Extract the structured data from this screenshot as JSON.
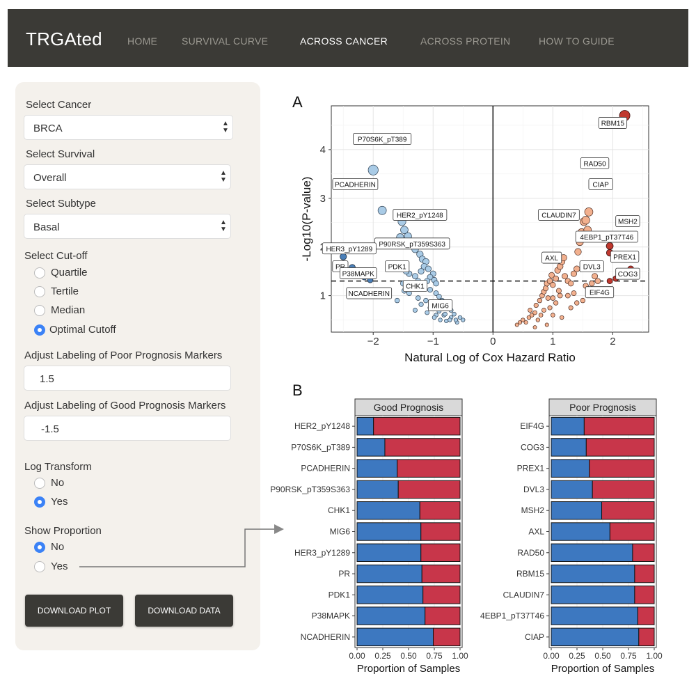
{
  "app": {
    "brand": "TRGAted",
    "nav": [
      "HOME",
      "SURVIVAL CURVE",
      "ACROSS CANCER",
      "ACROSS PROTEIN",
      "HOW TO GUIDE"
    ],
    "active_nav": "ACROSS CANCER"
  },
  "sidebar": {
    "cancer_label": "Select Cancer",
    "cancer_value": "BRCA",
    "survival_label": "Select Survival",
    "survival_value": "Overall",
    "subtype_label": "Select Subtype",
    "subtype_value": "Basal",
    "cutoff_label": "Select Cut-off",
    "cutoff_options": [
      "Quartile",
      "Tertile",
      "Median",
      "Optimal Cutoff"
    ],
    "cutoff_selected": "Optimal Cutoff",
    "poor_label": "Adjust Labeling of Poor Prognosis Markers",
    "poor_value": "1.5",
    "good_label": "Adjust Labeling of Good Prognosis Markers",
    "good_value": "-1.5",
    "log_label": "Log Transform",
    "log_options": [
      "No",
      "Yes"
    ],
    "log_selected": "Yes",
    "prop_label": "Show Proportion",
    "prop_options": [
      "No",
      "Yes"
    ],
    "prop_selected": "No",
    "download_plot": "DOWNLOAD PLOT",
    "download_data": "DOWNLOAD DATA"
  },
  "colors": {
    "navbar": "#3b3a36",
    "panel": "#f4f1ec",
    "radio_selected": "#3b82f6",
    "good_dark": "#4a7fb8",
    "good_light": "#a9cbe6",
    "poor_dark": "#c0392f",
    "poor_light": "#f2b08e",
    "bar_blue": "#3d78c0",
    "bar_red": "#c8364a"
  },
  "panel_a": {
    "tag": "A",
    "chart_data": {
      "type": "scatter",
      "xlabel": "Natural Log of Cox Hazard Ratio",
      "ylabel": "-Log10(P-value)",
      "xlim": [
        -2.7,
        2.6
      ],
      "ylim": [
        0.25,
        4.9
      ],
      "xticks": [
        -2,
        -1,
        0,
        1,
        2
      ],
      "yticks": [
        1,
        2,
        3,
        4
      ],
      "threshold_y": 1.3,
      "grid": true,
      "points_good": [
        [
          -2.0,
          3.58
        ],
        [
          -1.85,
          2.75
        ],
        [
          -1.52,
          2.52
        ],
        [
          -1.48,
          2.35
        ],
        [
          -1.42,
          2.22
        ],
        [
          -1.55,
          2.2
        ],
        [
          -1.35,
          2.05
        ],
        [
          -1.3,
          1.95
        ],
        [
          -1.22,
          1.85
        ],
        [
          -1.18,
          1.75
        ],
        [
          -1.12,
          1.7
        ],
        [
          -1.15,
          1.6
        ],
        [
          -1.08,
          1.55
        ],
        [
          -1.2,
          1.5
        ],
        [
          -1.0,
          1.45
        ],
        [
          -1.05,
          1.38
        ],
        [
          -0.98,
          1.32
        ],
        [
          -1.1,
          1.3
        ],
        [
          -0.95,
          1.25
        ],
        [
          -1.3,
          1.4
        ],
        [
          -1.4,
          1.45
        ],
        [
          -1.25,
          1.3
        ],
        [
          -1.15,
          1.2
        ],
        [
          -1.05,
          1.12
        ],
        [
          -0.95,
          1.05
        ],
        [
          -0.9,
          0.98
        ],
        [
          -0.85,
          0.9
        ],
        [
          -0.8,
          0.85
        ],
        [
          -0.75,
          0.75
        ],
        [
          -0.7,
          0.7
        ],
        [
          -0.65,
          0.62
        ],
        [
          -0.55,
          0.55
        ],
        [
          -0.5,
          0.5
        ],
        [
          -0.6,
          0.45
        ],
        [
          -0.7,
          0.55
        ],
        [
          -0.82,
          0.6
        ],
        [
          -0.9,
          0.68
        ],
        [
          -1.0,
          0.8
        ],
        [
          -1.12,
          0.9
        ],
        [
          -1.25,
          0.95
        ],
        [
          -1.4,
          1.05
        ],
        [
          -1.6,
          0.9
        ],
        [
          -1.3,
          0.7
        ],
        [
          -1.1,
          0.65
        ],
        [
          -0.95,
          0.6
        ],
        [
          -0.88,
          0.5
        ],
        [
          -0.78,
          0.48
        ],
        [
          -0.72,
          0.5
        ],
        [
          -1.05,
          0.75
        ],
        [
          -1.2,
          0.82
        ],
        [
          -0.92,
          0.78
        ],
        [
          -1.35,
          1.15
        ],
        [
          -1.5,
          1.25
        ],
        [
          -1.45,
          1.5
        ],
        [
          -1.48,
          1.1
        ],
        [
          -0.62,
          0.5
        ],
        [
          -0.98,
          0.55
        ],
        [
          -0.8,
          0.62
        ]
      ],
      "points_good_dark": [
        [
          -2.5,
          1.8
        ],
        [
          -2.35,
          1.58
        ],
        [
          -2.25,
          1.5
        ],
        [
          -2.15,
          1.38
        ],
        [
          -2.05,
          1.32
        ]
      ],
      "points_poor": [
        [
          0.4,
          0.4
        ],
        [
          0.45,
          0.45
        ],
        [
          0.5,
          0.5
        ],
        [
          0.55,
          0.45
        ],
        [
          0.6,
          0.55
        ],
        [
          0.65,
          0.6
        ],
        [
          0.62,
          0.7
        ],
        [
          0.7,
          0.65
        ],
        [
          0.72,
          0.8
        ],
        [
          0.75,
          0.5
        ],
        [
          0.78,
          0.9
        ],
        [
          0.82,
          1.0
        ],
        [
          0.85,
          1.08
        ],
        [
          0.88,
          1.15
        ],
        [
          0.9,
          1.25
        ],
        [
          0.92,
          0.95
        ],
        [
          0.95,
          1.3
        ],
        [
          0.98,
          1.42
        ],
        [
          1.0,
          1.22
        ],
        [
          1.05,
          1.35
        ],
        [
          1.08,
          1.52
        ],
        [
          1.1,
          1.1
        ],
        [
          1.12,
          1.6
        ],
        [
          1.15,
          1.7
        ],
        [
          1.18,
          1.78
        ],
        [
          1.05,
          0.85
        ],
        [
          0.95,
          0.75
        ],
        [
          0.85,
          0.7
        ],
        [
          0.8,
          0.6
        ],
        [
          1.0,
          0.95
        ],
        [
          1.12,
          1.0
        ],
        [
          1.2,
          1.4
        ],
        [
          1.25,
          1.3
        ],
        [
          1.3,
          1.25
        ],
        [
          1.35,
          1.45
        ],
        [
          1.4,
          1.55
        ],
        [
          1.42,
          1.9
        ],
        [
          1.45,
          2.1
        ],
        [
          1.48,
          2.3
        ],
        [
          1.5,
          2.25
        ],
        [
          1.52,
          2.52
        ],
        [
          1.55,
          2.55
        ],
        [
          1.58,
          2.35
        ],
        [
          1.6,
          2.2
        ],
        [
          1.6,
          2.72
        ],
        [
          1.15,
          0.55
        ],
        [
          1.3,
          0.75
        ],
        [
          1.4,
          0.85
        ],
        [
          1.5,
          0.9
        ],
        [
          1.55,
          1.2
        ],
        [
          1.62,
          1.05
        ],
        [
          1.65,
          1.25
        ],
        [
          1.7,
          1.4
        ],
        [
          1.75,
          1.3
        ],
        [
          1.25,
          1.0
        ],
        [
          1.35,
          1.05
        ],
        [
          0.7,
          0.35
        ],
        [
          0.9,
          0.4
        ],
        [
          1.0,
          0.6
        ]
      ],
      "points_poor_dark": [
        [
          2.2,
          4.7
        ],
        [
          1.95,
          2.02
        ],
        [
          1.95,
          1.88
        ],
        [
          2.3,
          1.55
        ],
        [
          2.15,
          1.4
        ],
        [
          2.05,
          1.35
        ],
        [
          1.95,
          1.3
        ]
      ],
      "labels": [
        {
          "text": "RBM15",
          "x": 2.0,
          "y": 4.55
        },
        {
          "text": "P70S6K_pT389",
          "x": -1.85,
          "y": 4.22
        },
        {
          "text": "RAD50",
          "x": 1.7,
          "y": 3.72
        },
        {
          "text": "PCADHERIN",
          "x": -2.3,
          "y": 3.29
        },
        {
          "text": "CIAP",
          "x": 1.8,
          "y": 3.29
        },
        {
          "text": "HER2_pY1248",
          "x": -1.22,
          "y": 2.66
        },
        {
          "text": "CLAUDIN7",
          "x": 1.1,
          "y": 2.66
        },
        {
          "text": "MSH2",
          "x": 2.25,
          "y": 2.53
        },
        {
          "text": "4EBP1_pT37T46",
          "x": 1.9,
          "y": 2.21
        },
        {
          "text": "P90RSK_pT359S363",
          "x": -1.35,
          "y": 2.07
        },
        {
          "text": "HER3_pY1289",
          "x": -2.4,
          "y": 1.97
        },
        {
          "text": "PREX1",
          "x": 2.2,
          "y": 1.8
        },
        {
          "text": "AXL",
          "x": 0.98,
          "y": 1.78
        },
        {
          "text": "PR",
          "x": -2.55,
          "y": 1.6
        },
        {
          "text": "PDK1",
          "x": -1.6,
          "y": 1.6
        },
        {
          "text": "DVL3",
          "x": 1.65,
          "y": 1.6
        },
        {
          "text": "P38MAPK",
          "x": -2.25,
          "y": 1.46
        },
        {
          "text": "COG3",
          "x": 2.25,
          "y": 1.45
        },
        {
          "text": "CHK1",
          "x": -1.3,
          "y": 1.2
        },
        {
          "text": "NCADHERIN",
          "x": -2.07,
          "y": 1.05
        },
        {
          "text": "EIF4G",
          "x": 1.78,
          "y": 1.07
        },
        {
          "text": "MIG6",
          "x": -0.88,
          "y": 0.8
        }
      ]
    }
  },
  "panel_b": {
    "tag": "B",
    "chart_data": [
      {
        "type": "bar",
        "title": "Good Prognosis",
        "xlabel": "Proportion of Samples",
        "xticks": [
          "0.00",
          "0.25",
          "0.50",
          "0.75",
          "1.00"
        ],
        "categories": [
          "HER2_pY1248",
          "P70S6K_pT389",
          "PCADHERIN",
          "P90RSK_pT359S363",
          "CHK1",
          "MIG6",
          "HER3_pY1289",
          "PR",
          "PDK1",
          "P38MAPK",
          "NCADHERIN"
        ],
        "values": [
          0.16,
          0.27,
          0.39,
          0.4,
          0.61,
          0.62,
          0.62,
          0.63,
          0.64,
          0.66,
          0.74
        ]
      },
      {
        "type": "bar",
        "title": "Poor Prognosis",
        "xlabel": "Proportion of Samples",
        "xticks": [
          "0.00",
          "0.25",
          "0.50",
          "0.75",
          "1.00"
        ],
        "categories": [
          "EIF4G",
          "COG3",
          "PREX1",
          "DVL3",
          "MSH2",
          "AXL",
          "RAD50",
          "RBM15",
          "CLAUDIN7",
          "4EBP1_pT37T46",
          "CIAP"
        ],
        "values": [
          0.32,
          0.34,
          0.37,
          0.4,
          0.49,
          0.57,
          0.79,
          0.81,
          0.81,
          0.84,
          0.85
        ]
      }
    ]
  }
}
